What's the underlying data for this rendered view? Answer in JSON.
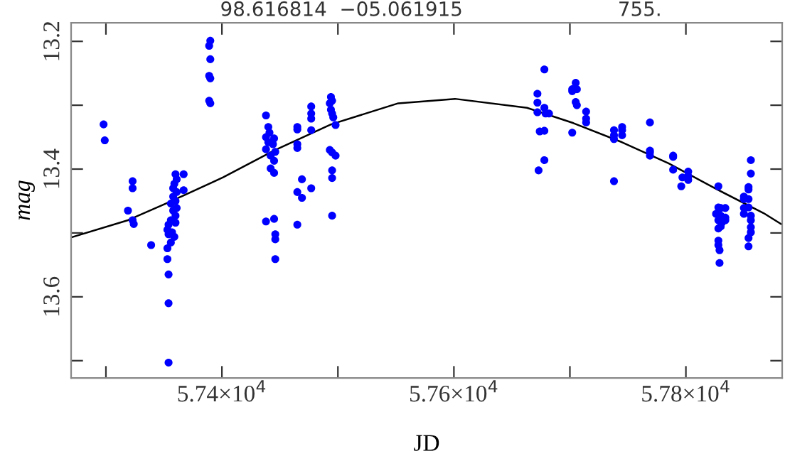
{
  "chart_data": {
    "type": "scatter",
    "xlabel": "JD",
    "ylabel": "mag",
    "annotations": [
      "98.616814  −05.061915",
      "755."
    ],
    "xlim": [
      57270,
      57883
    ],
    "ylim": [
      13.727,
      13.171
    ],
    "xticks": [
      {
        "value": 57300,
        "label": null
      },
      {
        "value": 57400,
        "label": "5.74×10$^{4}$"
      },
      {
        "value": 57500,
        "label": null
      },
      {
        "value": 57600,
        "label": "5.76×10$^{4}$"
      },
      {
        "value": 57700,
        "label": null
      },
      {
        "value": 57800,
        "label": "5.78×10$^{4}$"
      }
    ],
    "yticks": [
      13.2,
      {
        "value": 13.3,
        "label": null
      },
      13.4,
      {
        "value": 13.5,
        "label": null
      },
      13.6,
      {
        "value": 13.7,
        "label": null
      }
    ],
    "grid": false,
    "marker": "circle",
    "series": [
      {
        "color": "#0000ff",
        "x": [
          57298,
          57299,
          57323,
          57323,
          57319,
          57323,
          57324,
          57339,
          57360,
          57361,
          57359,
          57358,
          57361,
          57358,
          57360,
          57356,
          57361,
          57358,
          57360,
          57356,
          57360,
          57354,
          57353,
          57357,
          57354,
          57359,
          57356,
          57353,
          57353,
          57354,
          57354,
          57354,
          57367,
          57367,
          57390,
          57389,
          57390,
          57389,
          57390,
          57389,
          57390,
          57438,
          57440,
          57441,
          57438,
          57445,
          57440,
          57444,
          57438,
          57446,
          57442,
          57445,
          57442,
          57445,
          57438,
          57445,
          57446,
          57446,
          57446,
          57465,
          57465,
          57465,
          57465,
          57465,
          57469,
          57469,
          57465,
          57477,
          57477,
          57477,
          57477,
          57477,
          57494,
          57495,
          57493,
          57494,
          57495,
          57496,
          57498,
          57493,
          57495,
          57498,
          57495,
          57495,
          57495,
          57672,
          57672,
          57678,
          57672,
          57678,
          57679,
          57682,
          57674,
          57678,
          57678,
          57673,
          57702,
          57702,
          57705,
          57706,
          57705,
          57706,
          57702,
          57714,
          57714,
          57714,
          57738,
          57738,
          57738,
          57745,
          57745,
          57745,
          57738,
          57769,
          57769,
          57769,
          57769,
          57789,
          57789,
          57789,
          57797,
          57802,
          57802,
          57802,
          57796,
          57828,
          57828,
          57830,
          57834,
          57826,
          57830,
          57828,
          57834,
          57831,
          57828,
          57830,
          57828,
          57828,
          57829,
          57829,
          57834,
          57850,
          57850,
          57854,
          57854,
          57854,
          57856,
          57856,
          57850,
          57850,
          57854,
          57856,
          57856,
          57856,
          57856,
          57854,
          57854
        ],
        "values": [
          13.33,
          13.355,
          13.419,
          13.43,
          13.465,
          13.48,
          13.486,
          13.519,
          13.408,
          13.416,
          13.423,
          13.43,
          13.436,
          13.443,
          13.45,
          13.454,
          13.461,
          13.465,
          13.473,
          13.48,
          13.484,
          13.487,
          13.495,
          13.499,
          13.502,
          13.506,
          13.515,
          13.524,
          13.541,
          13.565,
          13.61,
          13.703,
          13.408,
          13.433,
          13.199,
          13.207,
          13.228,
          13.254,
          13.258,
          13.293,
          13.297,
          13.316,
          13.334,
          13.343,
          13.35,
          13.352,
          13.358,
          13.361,
          13.369,
          13.373,
          13.379,
          13.387,
          13.399,
          13.406,
          13.482,
          13.478,
          13.502,
          13.51,
          13.541,
          13.334,
          13.338,
          13.361,
          13.367,
          13.436,
          13.416,
          13.445,
          13.487,
          13.302,
          13.313,
          13.321,
          13.339,
          13.43,
          13.287,
          13.293,
          13.297,
          13.307,
          13.313,
          13.319,
          13.331,
          13.37,
          13.374,
          13.379,
          13.402,
          13.414,
          13.473,
          13.282,
          13.296,
          13.244,
          13.311,
          13.304,
          13.313,
          13.313,
          13.341,
          13.34,
          13.386,
          13.402,
          13.275,
          13.278,
          13.265,
          13.275,
          13.295,
          13.3,
          13.343,
          13.31,
          13.321,
          13.327,
          13.339,
          13.347,
          13.353,
          13.334,
          13.339,
          13.347,
          13.419,
          13.327,
          13.371,
          13.374,
          13.379,
          13.379,
          13.381,
          13.401,
          13.413,
          13.404,
          13.411,
          13.417,
          13.427,
          13.427,
          13.46,
          13.461,
          13.461,
          13.47,
          13.473,
          13.48,
          13.476,
          13.484,
          13.493,
          13.49,
          13.512,
          13.519,
          13.527,
          13.547,
          13.48,
          13.443,
          13.447,
          13.428,
          13.432,
          13.447,
          13.386,
          13.407,
          13.461,
          13.47,
          13.46,
          13.473,
          13.48,
          13.491,
          13.499,
          13.508,
          13.521
        ]
      },
      {
        "type": "line",
        "color": "#000000",
        "marker": "none",
        "line_style": "solid",
        "x": [
          57270,
          57319,
          57353,
          57401,
          57445,
          57494,
          57552,
          57601,
          57663,
          57703,
          57745,
          57785,
          57826,
          57867,
          57883
        ],
        "values": [
          13.507,
          13.48,
          13.453,
          13.413,
          13.371,
          13.33,
          13.297,
          13.29,
          13.304,
          13.328,
          13.358,
          13.391,
          13.431,
          13.469,
          13.487
        ]
      }
    ]
  }
}
